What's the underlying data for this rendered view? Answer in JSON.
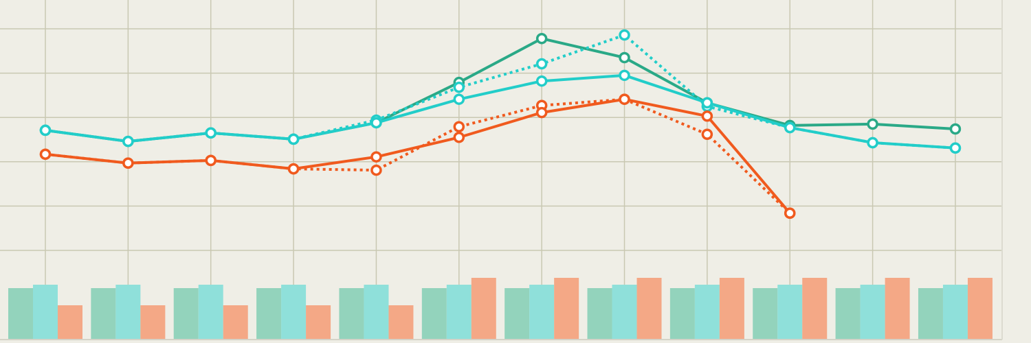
{
  "chart_data": [
    {
      "type": "line",
      "categories": [
        null,
        null,
        null,
        null,
        null,
        null,
        null,
        null,
        null,
        null,
        null,
        null
      ],
      "ylim": [
        0,
        5
      ],
      "yticks": [
        0,
        1,
        2,
        3,
        4,
        5
      ],
      "grid": true,
      "series": [
        {
          "color": "#2aa987",
          "dashed": false,
          "values": [
            2.71,
            2.46,
            2.65,
            2.51,
            2.88,
            3.79,
            4.78,
            4.35,
            3.33,
            2.82,
            2.85,
            2.74
          ]
        },
        {
          "color": "#22cdc9",
          "dashed": true,
          "values": [
            2.71,
            2.46,
            2.65,
            2.51,
            2.94,
            3.68,
            4.21,
            4.86,
            3.25,
            2.77,
            2.43,
            2.31
          ]
        },
        {
          "color": "#22cdc9",
          "dashed": false,
          "values": [
            2.71,
            2.46,
            2.65,
            2.51,
            2.88,
            3.41,
            3.82,
            3.95,
            3.33,
            2.77,
            2.43,
            2.31
          ]
        },
        {
          "color": "#f05a1e",
          "dashed": true,
          "values": [
            2.17,
            1.97,
            2.03,
            1.84,
            1.81,
            2.79,
            3.27,
            3.41,
            2.62,
            0.84,
            null,
            null
          ]
        },
        {
          "color": "#f05a1e",
          "dashed": false,
          "values": [
            2.17,
            1.97,
            2.03,
            1.84,
            2.11,
            2.55,
            3.11,
            3.41,
            3.03,
            0.84,
            null,
            null
          ]
        }
      ]
    },
    {
      "type": "bar",
      "categories": [
        null,
        null,
        null,
        null,
        null,
        null,
        null,
        null,
        null,
        null,
        null,
        null
      ],
      "ylim": [
        0,
        100
      ],
      "series": [
        {
          "color": "#93d3bc",
          "values": [
            75,
            75,
            75,
            75,
            75,
            75,
            75,
            75,
            75,
            75,
            75,
            75
          ]
        },
        {
          "color": "#8fe0da",
          "values": [
            80,
            80,
            80,
            80,
            80,
            80,
            80,
            80,
            80,
            80,
            80,
            80
          ]
        },
        {
          "color": "#f4a886",
          "values": [
            50,
            50,
            50,
            50,
            50,
            90,
            90,
            90,
            90,
            90,
            90,
            90
          ]
        }
      ]
    }
  ]
}
